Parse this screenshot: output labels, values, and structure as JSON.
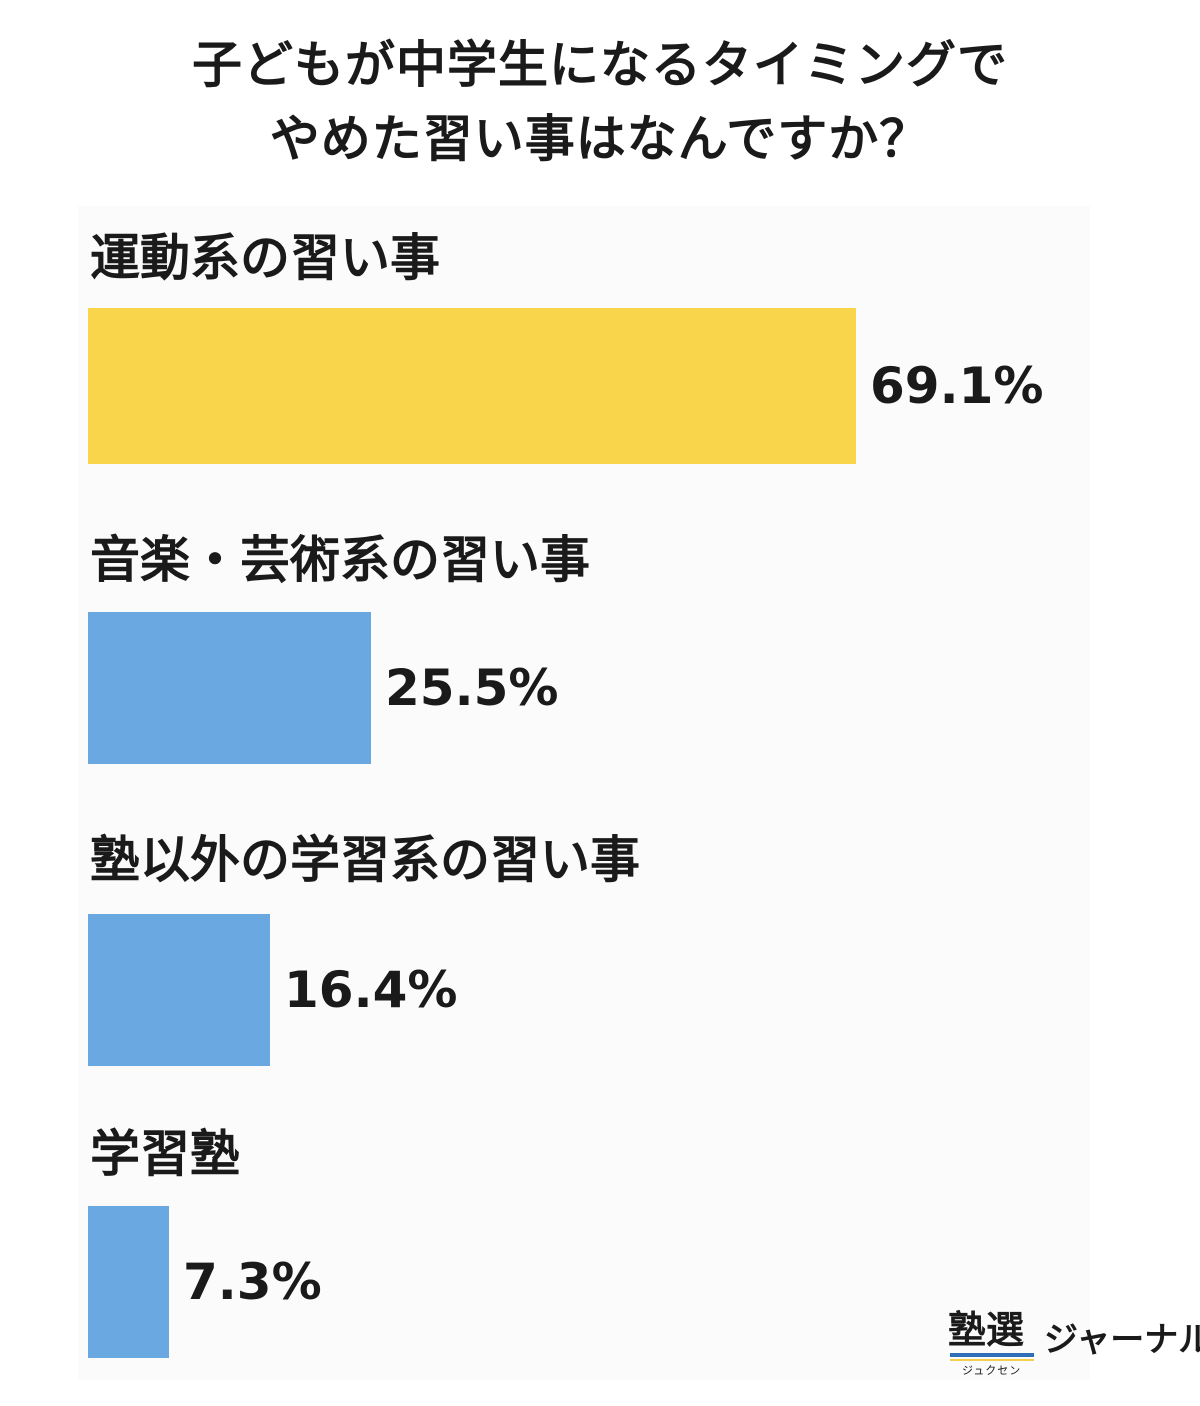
{
  "chart_data": {
    "type": "bar",
    "orientation": "horizontal",
    "title_lines": [
      "子どもが中学生になるタイミングで",
      "やめた習い事はなんですか？"
    ],
    "categories": [
      "運動系の習い事",
      "音楽・芸術系の習い事",
      "塾以外の学習系の習い事",
      "学習塾"
    ],
    "values": [
      69.1,
      25.5,
      16.4,
      7.3
    ],
    "value_labels": [
      "69.1%",
      "25.5%",
      "16.4%",
      "7.3%"
    ],
    "unit": "%",
    "colors": [
      "#f9d54c",
      "#6aa8e2",
      "#6aa8e2",
      "#6aa8e2"
    ],
    "xlim": [
      0,
      100
    ],
    "grid": false,
    "legend": "none"
  },
  "logo": {
    "kanji": "塾選",
    "ruby": "ジュクセン",
    "text": "ジャーナル"
  }
}
